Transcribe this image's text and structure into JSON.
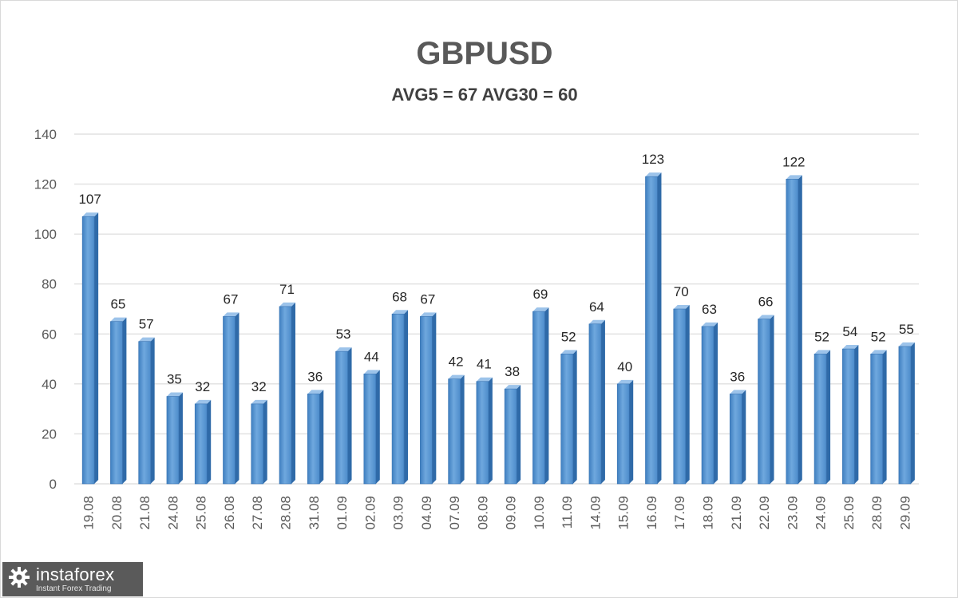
{
  "chart_data": {
    "type": "bar",
    "title": "GBPUSD",
    "subtitle": "AVG5 = 67 AVG30 = 60",
    "xlabel": "",
    "ylabel": "",
    "ylim": [
      0,
      140
    ],
    "yticks": [
      0,
      20,
      40,
      60,
      80,
      100,
      120,
      140
    ],
    "grid": true,
    "bar_color": "#5b9bd5",
    "categories": [
      "19.08",
      "20.08",
      "21.08",
      "24.08",
      "25.08",
      "26.08",
      "27.08",
      "28.08",
      "31.08",
      "01.09",
      "02.09",
      "03.09",
      "04.09",
      "07.09",
      "08.09",
      "09.09",
      "10.09",
      "11.09",
      "14.09",
      "15.09",
      "16.09",
      "17.09",
      "18.09",
      "21.09",
      "22.09",
      "23.09",
      "24.09",
      "25.09",
      "28.09",
      "29.09"
    ],
    "values": [
      107,
      65,
      57,
      35,
      32,
      67,
      32,
      71,
      36,
      53,
      44,
      68,
      67,
      42,
      41,
      38,
      69,
      52,
      64,
      40,
      123,
      70,
      63,
      36,
      66,
      122,
      52,
      54,
      52,
      55
    ]
  },
  "watermark": {
    "brand": "instaforex",
    "tagline": "Instant Forex Trading",
    "icon": "gear-icon"
  }
}
